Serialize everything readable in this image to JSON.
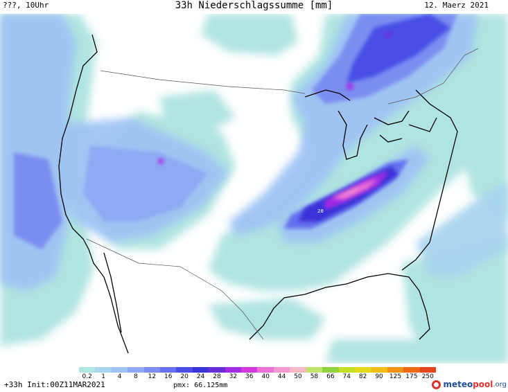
{
  "header": {
    "left": "???, 10Uhr",
    "title": "33h Niederschlagssumme [mm]",
    "right": "12. Maerz 2021"
  },
  "legend": {
    "ticks": [
      "0.2",
      "1",
      "4",
      "8",
      "12",
      "16",
      "20",
      "24",
      "28",
      "32",
      "36",
      "40",
      "44",
      "50",
      "58",
      "66",
      "74",
      "82",
      "90",
      "125",
      "175",
      "250"
    ],
    "colors": [
      "#b0e4e0",
      "#a9d4ee",
      "#9fc3f4",
      "#8fa9f4",
      "#7b8df0",
      "#6470ee",
      "#4a4ee6",
      "#3a33d8",
      "#6a2ed8",
      "#a32ce4",
      "#d436e0",
      "#ee6fd6",
      "#f59ad0",
      "#f7b8c6",
      "#bde36a",
      "#8ed23e",
      "#c4dc22",
      "#e4d817",
      "#f0bd12",
      "#f39311",
      "#f06a13",
      "#e6431c"
    ]
  },
  "map_labels": {
    "max_value": "28"
  },
  "footer": {
    "run": "+33h Init:00Z11MAR2021",
    "pmx": "pmx: 66.125mm",
    "logo": {
      "part1": "meteo",
      "part2": "pool",
      "part3": ".org"
    }
  }
}
